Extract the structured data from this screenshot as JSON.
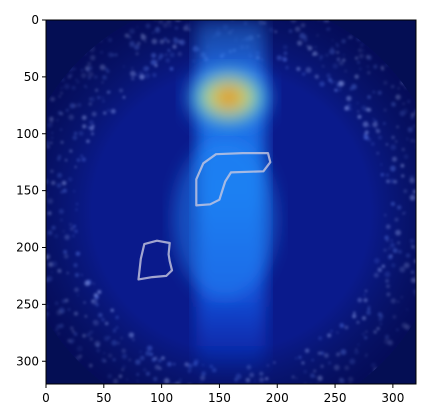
{
  "chart_data": {
    "type": "heatmap",
    "title": "",
    "xlabel": "",
    "ylabel": "",
    "xlim": [
      0,
      320
    ],
    "ylim": [
      320,
      0
    ],
    "x_ticks": [
      0,
      50,
      100,
      150,
      200,
      250,
      300
    ],
    "y_ticks": [
      0,
      50,
      100,
      150,
      200,
      250,
      300
    ],
    "x_tick_labels": [
      "0",
      "50",
      "100",
      "150",
      "200",
      "250",
      "300"
    ],
    "y_tick_labels": [
      "0",
      "50",
      "100",
      "150",
      "200",
      "250",
      "300"
    ],
    "grid": false,
    "colormap": "jet",
    "image_content": "circular endoscopic-style grayscale image with a semi-transparent jet heatmap overlay",
    "hotspot_peak": {
      "x": 158,
      "y": 68,
      "level": 1.0
    },
    "hotspot_spread": {
      "x": 38,
      "y": 28
    },
    "vertical_band": {
      "x": 160,
      "y_from": 0,
      "y_to": 310,
      "level": 0.35
    },
    "outlined_regions": [
      {
        "name": "",
        "points": [
          [
            130,
            163
          ],
          [
            130,
            140
          ],
          [
            136,
            126
          ],
          [
            147,
            118
          ],
          [
            170,
            117
          ],
          [
            192,
            117
          ],
          [
            194,
            125
          ],
          [
            188,
            133
          ],
          [
            160,
            134
          ],
          [
            155,
            142
          ],
          [
            150,
            158
          ],
          [
            142,
            162
          ]
        ]
      },
      {
        "name": "",
        "points": [
          [
            80,
            228
          ],
          [
            82,
            210
          ],
          [
            85,
            197
          ],
          [
            96,
            194
          ],
          [
            107,
            196
          ],
          [
            106,
            206
          ],
          [
            107,
            212
          ],
          [
            109,
            220
          ],
          [
            104,
            225
          ],
          [
            92,
            226
          ]
        ]
      }
    ],
    "colors": {
      "background": "#0a1a8c",
      "circle_outside": "#040e54",
      "outline": "#c8c8e0",
      "frame": "#000000"
    }
  }
}
